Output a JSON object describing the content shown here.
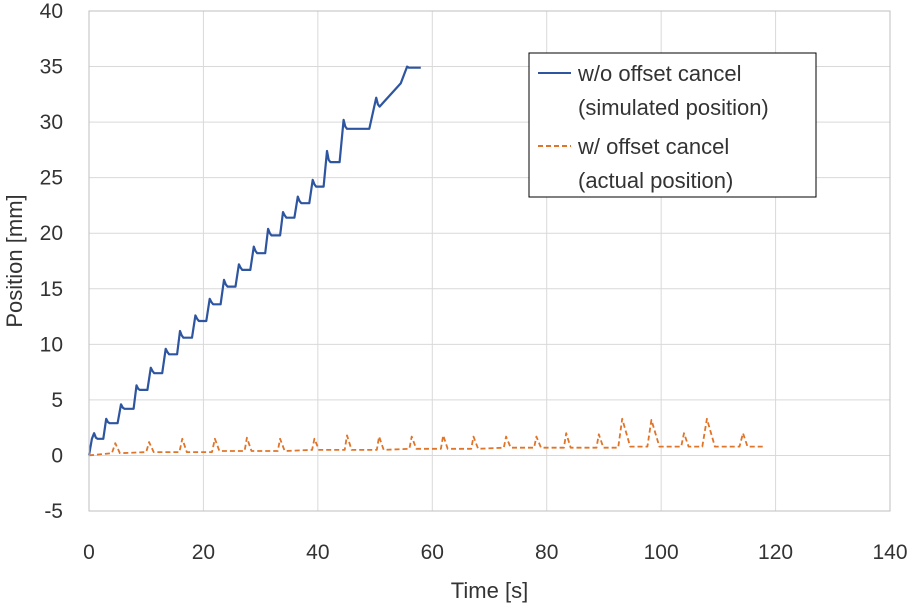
{
  "chart_data": {
    "type": "line",
    "title": "",
    "xlabel": "Time [s]",
    "ylabel": "Position [mm]",
    "xlim": [
      0,
      140
    ],
    "ylim": [
      -5,
      40
    ],
    "x_ticks": [
      0,
      20,
      40,
      60,
      80,
      100,
      120,
      140
    ],
    "y_ticks": [
      -5,
      0,
      5,
      10,
      15,
      20,
      25,
      30,
      35,
      40
    ],
    "grid": true,
    "legend_position": "top-right",
    "series": [
      {
        "name": "w/o offset cancel (simulated position)",
        "legend_lines": [
          "w/o offset cancel",
          "(simulated position)"
        ],
        "color": "#2e55a0",
        "style": "solid",
        "x": [
          0,
          0.5,
          0.9,
          1.2,
          1.5,
          2.5,
          3.0,
          3.3,
          3.6,
          5.0,
          5.6,
          5.9,
          6.2,
          7.8,
          8.3,
          8.6,
          8.9,
          10.2,
          10.8,
          11.1,
          11.4,
          12.8,
          13.4,
          13.7,
          14.0,
          15.4,
          15.9,
          16.2,
          16.5,
          18.0,
          18.6,
          18.9,
          19.2,
          20.5,
          21.1,
          21.4,
          21.7,
          23.0,
          23.6,
          23.9,
          24.2,
          25.6,
          26.2,
          26.5,
          26.8,
          28.2,
          28.8,
          29.1,
          29.4,
          30.8,
          31.3,
          31.6,
          31.9,
          33.4,
          33.9,
          34.2,
          34.5,
          35.9,
          36.5,
          36.8,
          37.1,
          38.5,
          39.1,
          39.4,
          39.7,
          41.0,
          41.6,
          41.9,
          42.2,
          43.8,
          44.5,
          44.8,
          45.1,
          49.0,
          50.2,
          50.5,
          50.8,
          54.5,
          55.6,
          55.9,
          56.2,
          58.0
        ],
        "y": [
          0.0,
          1.5,
          2.0,
          1.6,
          1.5,
          1.5,
          3.3,
          3.0,
          2.9,
          2.9,
          4.6,
          4.3,
          4.2,
          4.2,
          6.3,
          6.0,
          5.9,
          5.9,
          7.9,
          7.6,
          7.4,
          7.4,
          9.6,
          9.3,
          9.1,
          9.1,
          11.2,
          10.8,
          10.6,
          10.6,
          12.6,
          12.3,
          12.1,
          12.1,
          14.1,
          13.8,
          13.6,
          13.6,
          15.8,
          15.4,
          15.2,
          15.2,
          17.2,
          16.9,
          16.7,
          16.7,
          18.8,
          18.4,
          18.2,
          18.2,
          20.4,
          20.0,
          19.8,
          19.8,
          21.9,
          21.6,
          21.4,
          21.4,
          23.3,
          22.9,
          22.7,
          22.7,
          24.8,
          24.4,
          24.2,
          24.2,
          27.4,
          26.6,
          26.4,
          26.4,
          30.2,
          29.6,
          29.4,
          29.4,
          32.2,
          31.6,
          31.4,
          33.5,
          35.0,
          34.9,
          34.9,
          34.9
        ]
      },
      {
        "name": "w/ offset cancel (actual position)",
        "legend_lines": [
          "w/ offset cancel",
          "(actual position)"
        ],
        "color": "#e07428",
        "style": "dashed",
        "x": [
          0,
          4.0,
          4.6,
          5.4,
          10.0,
          10.5,
          11.3,
          15.8,
          16.3,
          17.1,
          21.5,
          22.0,
          22.8,
          27.2,
          27.6,
          28.4,
          33.0,
          33.4,
          34.2,
          39.0,
          39.4,
          40.2,
          44.7,
          45.1,
          45.9,
          50.3,
          50.7,
          51.5,
          56.0,
          56.4,
          57.2,
          61.5,
          61.9,
          62.7,
          66.8,
          67.2,
          68.0,
          72.5,
          72.9,
          73.7,
          77.8,
          78.2,
          79.0,
          83.0,
          83.4,
          84.2,
          88.7,
          89.1,
          89.9,
          92.5,
          93.2,
          94.6,
          97.6,
          98.3,
          99.7,
          103.5,
          104.0,
          104.8,
          107.2,
          108.0,
          109.4,
          113.7,
          114.3,
          115.1,
          118.0
        ],
        "y": [
          0.0,
          0.2,
          1.1,
          0.2,
          0.3,
          1.2,
          0.3,
          0.3,
          1.5,
          0.3,
          0.3,
          1.5,
          0.4,
          0.4,
          1.6,
          0.4,
          0.4,
          1.5,
          0.4,
          0.5,
          1.5,
          0.5,
          0.5,
          1.8,
          0.5,
          0.5,
          1.7,
          0.5,
          0.6,
          1.7,
          0.6,
          0.6,
          1.8,
          0.6,
          0.6,
          1.7,
          0.6,
          0.7,
          1.7,
          0.7,
          0.7,
          1.7,
          0.7,
          0.7,
          2.0,
          0.7,
          0.7,
          1.9,
          0.7,
          0.7,
          3.3,
          0.8,
          0.8,
          3.2,
          0.8,
          0.8,
          2.0,
          0.8,
          0.8,
          3.3,
          0.8,
          0.8,
          2.0,
          0.8,
          0.8
        ]
      }
    ]
  }
}
